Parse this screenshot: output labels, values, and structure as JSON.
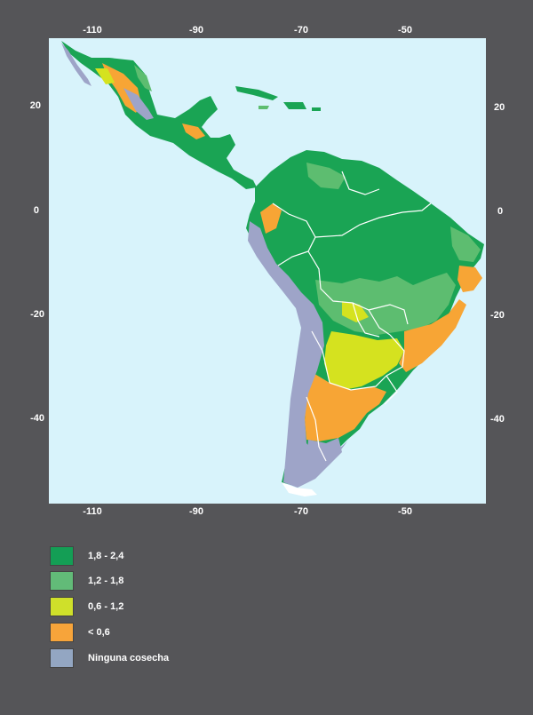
{
  "map": {
    "x_ticks": [
      "-110",
      "-90",
      "-70",
      "-50"
    ],
    "y_ticks": [
      "20",
      "0",
      "-20",
      "-40"
    ],
    "colors": {
      "ocean": "#d8f3fb",
      "high": "#1aa454",
      "mid_high": "#5dbd70",
      "mid": "#d5e21f",
      "low": "#f7a535",
      "none": "#9ea4c8",
      "border": "#ffffff"
    }
  },
  "legend": [
    {
      "label": "1,8 - 2,4",
      "color": "#149e55"
    },
    {
      "label": "1,2 - 1,8",
      "color": "#62bb78"
    },
    {
      "label": "0,6 - 1,2",
      "color": "#cfe02a"
    },
    {
      "label": "< 0,6",
      "color": "#f7a43a"
    },
    {
      "label": "Ninguna cosecha",
      "color": "#93a6c2"
    }
  ]
}
